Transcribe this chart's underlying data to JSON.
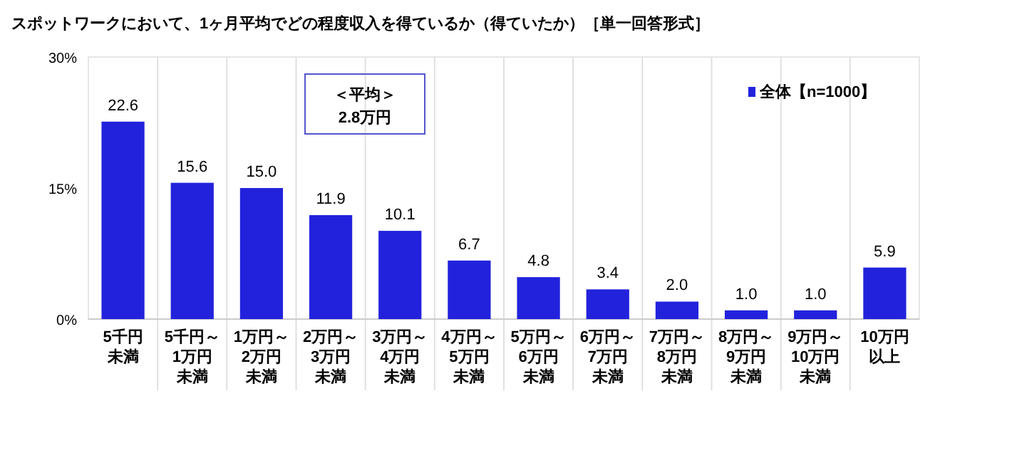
{
  "chart_data": {
    "type": "bar",
    "title": "スポットワークにおいて、1ヶ月平均でどの程度収入を得ているか（得ていたか）［単一回答形式］",
    "categories": [
      "5千円未満",
      "5千円～1万円未満",
      "1万円～2万円未満",
      "2万円～3万円未満",
      "3万円～4万円未満",
      "4万円～5万円未満",
      "5万円～6万円未満",
      "6万円～7万円未満",
      "7万円～8万円未満",
      "8万円～9万円未満",
      "9万円～10万円未満",
      "10万円以上"
    ],
    "series": [
      {
        "name": "全体【n=1000】",
        "color": "#2222dd",
        "values": [
          22.6,
          15.6,
          15.0,
          11.9,
          10.1,
          6.7,
          4.8,
          3.4,
          2.0,
          1.0,
          1.0,
          5.9
        ],
        "value_labels": [
          "22.6",
          "15.6",
          "15.0",
          "11.9",
          "10.1",
          "6.7",
          "4.8",
          "3.4",
          "2.0",
          "1.0",
          "1.0",
          "5.9"
        ]
      }
    ],
    "ylim": [
      0,
      30
    ],
    "yticks": [
      {
        "value": 0,
        "label": "0%"
      },
      {
        "value": 15,
        "label": "15%"
      },
      {
        "value": 30,
        "label": "30%"
      }
    ],
    "legend": "top right",
    "annotations": [
      "＜平均＞\n2.8万円"
    ]
  }
}
